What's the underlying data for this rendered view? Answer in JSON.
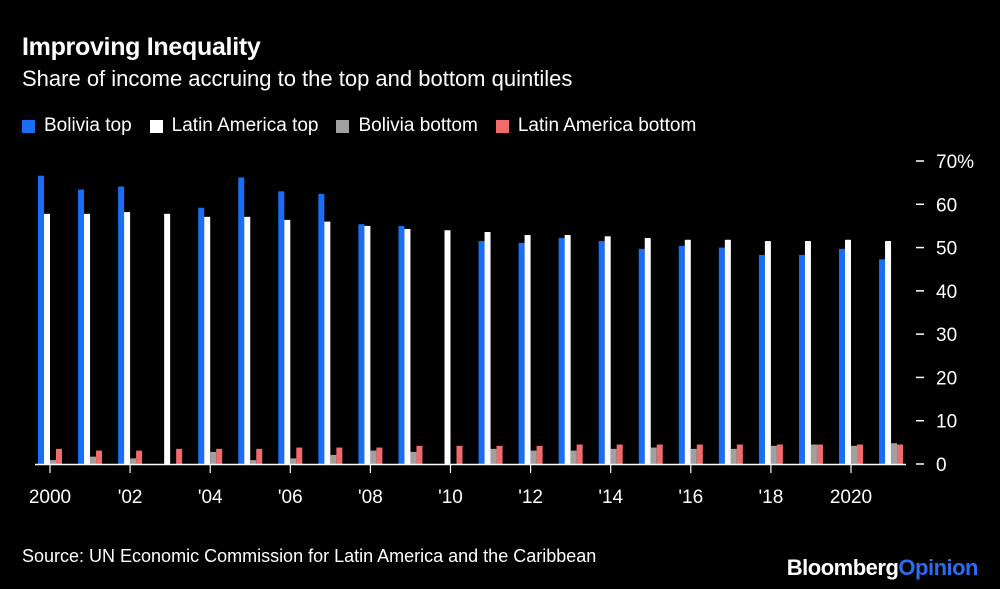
{
  "title": "Improving Inequality",
  "subtitle": "Share of income accruing to the top and bottom quintiles",
  "source": "Source: UN Economic Commission for Latin America and the Caribbean",
  "logo": {
    "brand": "Bloomberg",
    "sub": "Opinion"
  },
  "chart_data": {
    "type": "bar",
    "title": "Improving Inequality",
    "subtitle": "Share of income accruing to the top and bottom quintiles",
    "categories": [
      2000,
      2001,
      2002,
      2003,
      2004,
      2005,
      2006,
      2007,
      2008,
      2009,
      2010,
      2011,
      2012,
      2013,
      2014,
      2015,
      2016,
      2017,
      2018,
      2019,
      2020,
      2021
    ],
    "x_tick_labels": [
      {
        "year": 2000,
        "label": "2000"
      },
      {
        "year": 2002,
        "label": "'02"
      },
      {
        "year": 2004,
        "label": "'04"
      },
      {
        "year": 2006,
        "label": "'06"
      },
      {
        "year": 2008,
        "label": "'08"
      },
      {
        "year": 2010,
        "label": "'10"
      },
      {
        "year": 2012,
        "label": "'12"
      },
      {
        "year": 2014,
        "label": "'14"
      },
      {
        "year": 2016,
        "label": "'16"
      },
      {
        "year": 2018,
        "label": "'18"
      },
      {
        "year": 2020,
        "label": "2020"
      }
    ],
    "y_ticks": [
      {
        "value": 0,
        "label": "0"
      },
      {
        "value": 10,
        "label": "10"
      },
      {
        "value": 20,
        "label": "20"
      },
      {
        "value": 30,
        "label": "30"
      },
      {
        "value": 40,
        "label": "40"
      },
      {
        "value": 50,
        "label": "50"
      },
      {
        "value": 60,
        "label": "60"
      },
      {
        "value": 70,
        "label": "70%"
      }
    ],
    "ylim": [
      0,
      70
    ],
    "y_axis_side": "right",
    "grid": false,
    "legend_placement": "top-left",
    "series": [
      {
        "name": "Bolivia top",
        "color": "#1a6ef5",
        "values": [
          66.6,
          63.4,
          64.1,
          null,
          59.2,
          66.2,
          63.0,
          62.4,
          55.4,
          55.0,
          null,
          51.5,
          51.1,
          52.2,
          51.5,
          49.7,
          50.4,
          50.0,
          48.3,
          48.3,
          49.7,
          47.3
        ]
      },
      {
        "name": "Latin America top",
        "color": "#ffffff",
        "values": [
          57.8,
          57.8,
          58.2,
          57.8,
          57.1,
          57.1,
          56.4,
          56.0,
          55.0,
          54.3,
          54.0,
          53.6,
          52.9,
          52.9,
          52.6,
          52.2,
          51.8,
          51.8,
          51.5,
          51.5,
          51.8,
          51.5
        ]
      },
      {
        "name": "Bolivia bottom",
        "color": "#a0a0a0",
        "values": [
          0.9,
          1.7,
          1.3,
          null,
          2.8,
          0.9,
          1.3,
          2.1,
          3.1,
          2.8,
          null,
          3.5,
          3.1,
          3.1,
          3.5,
          3.8,
          3.5,
          3.5,
          4.2,
          4.5,
          4.2,
          4.8
        ]
      },
      {
        "name": "Latin America bottom",
        "color": "#f26b6b",
        "values": [
          3.5,
          3.1,
          3.1,
          3.5,
          3.5,
          3.5,
          3.8,
          3.8,
          3.8,
          4.2,
          4.2,
          4.2,
          4.2,
          4.5,
          4.5,
          4.5,
          4.5,
          4.5,
          4.5,
          4.5,
          4.5,
          4.5
        ]
      }
    ]
  }
}
